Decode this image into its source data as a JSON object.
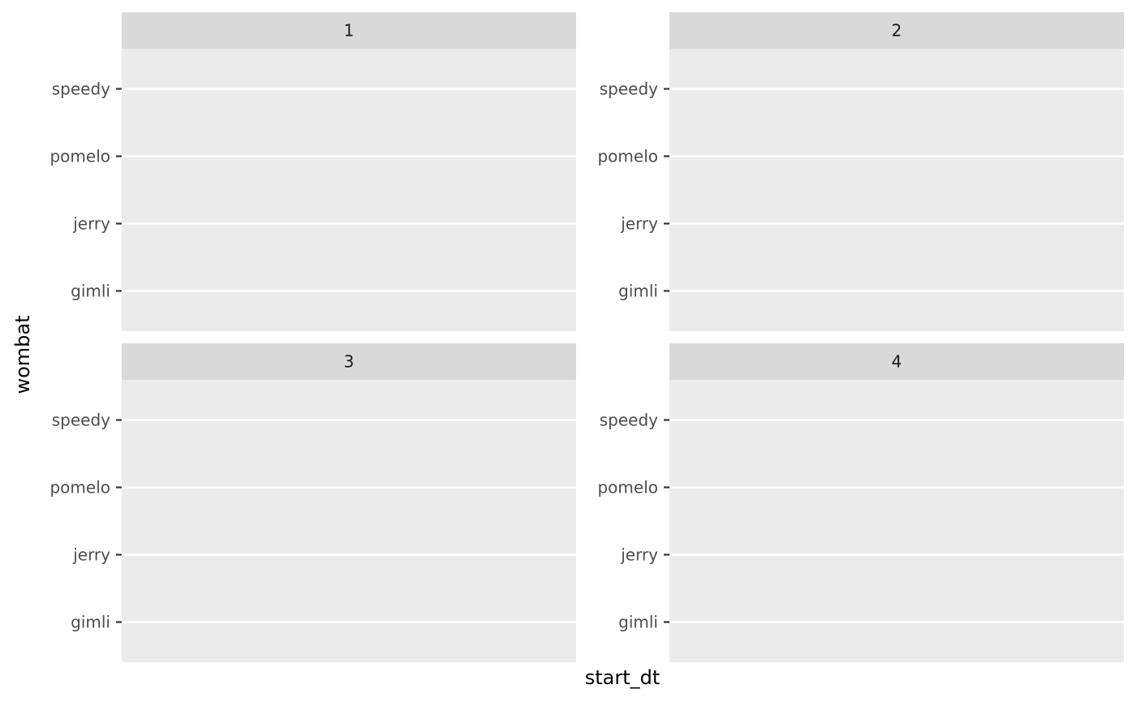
{
  "chart_data": {
    "type": "scatter",
    "facet_by": "facet",
    "facets": [
      "1",
      "2",
      "3",
      "4"
    ],
    "facet_layout": {
      "rows": 2,
      "cols": 2
    },
    "xlabel": "start_dt",
    "ylabel": "wombat",
    "y_categories": [
      "gimli",
      "jerry",
      "pomelo",
      "speedy"
    ],
    "x_ticks": [],
    "series": [],
    "grid": true,
    "legend": "none"
  },
  "colors": {
    "panel_background": "#ebebeb",
    "strip_background": "#d9d9d9",
    "gridline": "#ffffff",
    "tick": "#333333",
    "tick_label": "#4d4d4d"
  }
}
